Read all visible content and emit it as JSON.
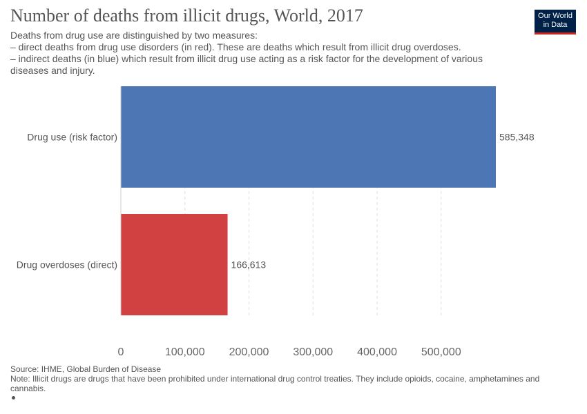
{
  "header": {
    "title": "Number of deaths from illicit drugs, World, 2017",
    "subtitle_lines": [
      "Deaths from drug use are distinguished by two measures:",
      "– direct deaths from drug use disorders (in red). These are deaths which result from illicit drug overdoses.",
      "– indirect deaths (in blue) which result from illicit drug use acting as a risk factor for the development of various",
      "diseases and injury."
    ]
  },
  "logo": {
    "line1": "Our World",
    "line2": "in Data",
    "bg": "#002147",
    "accent": "#ce261e"
  },
  "footer": {
    "source": "Source: IHME, Global Burden of Disease",
    "note": "Note: Illicit drugs are drugs that have been prohibited under international drug control treaties. They include opioids, cocaine, amphetamines and cannabis."
  },
  "chart_data": {
    "type": "bar",
    "orientation": "horizontal",
    "categories": [
      "Drug use (risk factor)",
      "Drug overdoses (direct)"
    ],
    "values": [
      585348,
      166613
    ],
    "value_labels": [
      "585,348",
      "166,613"
    ],
    "colors": [
      "#4c76b4",
      "#d14141"
    ],
    "x_ticks": [
      0,
      100000,
      200000,
      300000,
      400000,
      500000
    ],
    "x_tick_labels": [
      "0",
      "100,000",
      "200,000",
      "300,000",
      "400,000",
      "500,000"
    ],
    "xlim": [
      0,
      585348
    ],
    "grid": "vertical dashed"
  }
}
